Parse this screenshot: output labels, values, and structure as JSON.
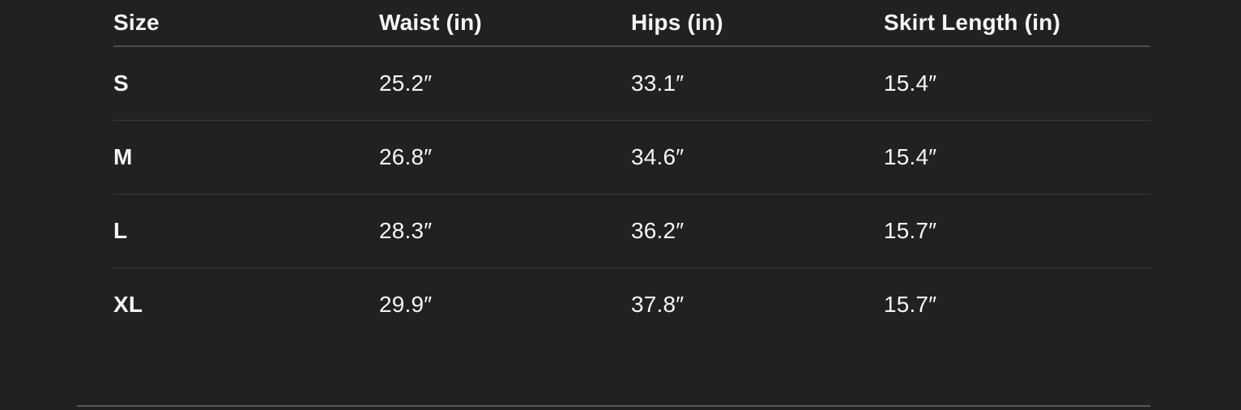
{
  "chart_data": {
    "type": "table",
    "title": "",
    "columns": [
      "Size",
      "Waist (in)",
      "Hips (in)",
      "Skirt Length (in)"
    ],
    "rows": [
      [
        "S",
        "25.2″",
        "33.1″",
        "15.4″"
      ],
      [
        "M",
        "26.8″",
        "34.6″",
        "15.4″"
      ],
      [
        "L",
        "28.3″",
        "36.2″",
        "15.7″"
      ],
      [
        "XL",
        "29.9″",
        "37.8″",
        "15.7″"
      ]
    ]
  },
  "colors": {
    "background": "#212123",
    "text": "#f5f5f7",
    "header_divider": "#4c4c4e",
    "row_divider": "#3a3a3c",
    "bottom_rule": "#58585c"
  }
}
